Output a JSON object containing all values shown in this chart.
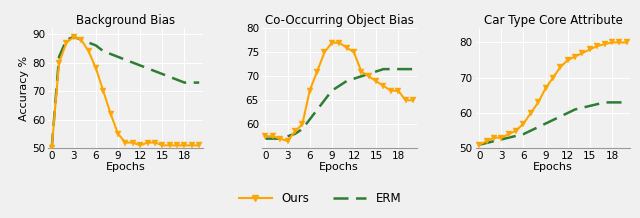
{
  "titles": [
    "Background Bias",
    "Co-Occurring Object Bias",
    "Car Type Core Attribute"
  ],
  "xlabel": "Epochs",
  "ylabel": "Accuracy %",
  "plots": [
    {
      "ylim": [
        50,
        92
      ],
      "yticks": [
        50,
        60,
        70,
        80,
        90
      ],
      "ours_x": [
        0,
        1,
        2,
        3,
        4,
        5,
        6,
        7,
        8,
        9,
        10,
        11,
        12,
        13,
        14,
        15,
        16,
        17,
        18,
        19,
        20
      ],
      "ours_y": [
        50,
        80,
        87,
        89,
        88,
        84,
        78,
        70,
        62,
        55,
        52,
        52,
        51,
        52,
        52,
        51,
        51,
        51,
        51,
        51,
        51
      ],
      "erm_x": [
        0,
        1,
        2,
        3,
        4,
        5,
        6,
        7,
        8,
        9,
        10,
        11,
        12,
        13,
        14,
        15,
        16,
        17,
        18,
        19,
        20
      ],
      "erm_y": [
        50,
        82,
        88,
        89,
        88,
        87,
        86,
        84,
        83,
        82,
        81,
        80,
        79,
        78,
        77,
        76,
        75,
        74,
        73,
        73,
        73
      ]
    },
    {
      "ylim": [
        55,
        79
      ],
      "yticks": [
        60,
        65,
        70,
        75,
        80
      ],
      "ours_x": [
        0,
        1,
        2,
        3,
        4,
        5,
        6,
        7,
        8,
        9,
        10,
        11,
        12,
        13,
        14,
        15,
        16,
        17,
        18,
        19,
        20
      ],
      "ours_y": [
        57.5,
        57.5,
        57,
        56.5,
        58.5,
        60,
        67,
        71,
        75,
        77,
        77,
        76,
        75,
        71,
        70,
        69,
        68,
        67,
        67,
        65,
        65
      ],
      "erm_x": [
        0,
        1,
        2,
        3,
        4,
        5,
        6,
        7,
        8,
        9,
        10,
        11,
        12,
        13,
        14,
        15,
        16,
        17,
        18,
        19,
        20
      ],
      "erm_y": [
        57,
        57,
        57,
        57.5,
        58,
        59,
        61,
        63,
        65,
        67,
        68,
        69,
        69.5,
        70,
        70.5,
        71,
        71.5,
        71.5,
        71.5,
        71.5,
        71.5
      ]
    },
    {
      "ylim": [
        50,
        84
      ],
      "yticks": [
        50,
        60,
        70,
        80
      ],
      "ours_x": [
        0,
        1,
        2,
        3,
        4,
        5,
        6,
        7,
        8,
        9,
        10,
        11,
        12,
        13,
        14,
        15,
        16,
        17,
        18,
        19,
        20
      ],
      "ours_y": [
        51,
        52,
        53,
        53,
        54,
        55,
        57,
        60,
        63,
        67,
        70,
        73,
        75,
        76,
        77,
        78,
        79,
        79.5,
        80,
        80,
        80
      ],
      "erm_x": [
        0,
        1,
        2,
        3,
        4,
        5,
        6,
        7,
        8,
        9,
        10,
        11,
        12,
        13,
        14,
        15,
        16,
        17,
        18,
        19,
        20
      ],
      "erm_y": [
        51,
        51.5,
        52,
        52.5,
        53,
        53.5,
        54,
        55,
        56,
        57,
        58,
        59,
        60,
        61,
        61.5,
        62,
        62.5,
        63,
        63,
        63,
        63
      ]
    }
  ],
  "ours_color": "#FFA500",
  "erm_color": "#2E7D32",
  "xticks": [
    0,
    3,
    6,
    9,
    12,
    15,
    18
  ],
  "xlim": [
    -0.5,
    20.5
  ],
  "grid_color": "#cccccc",
  "bg_color": "#f0f0f0",
  "legend_labels": [
    "Ours",
    "ERM"
  ]
}
